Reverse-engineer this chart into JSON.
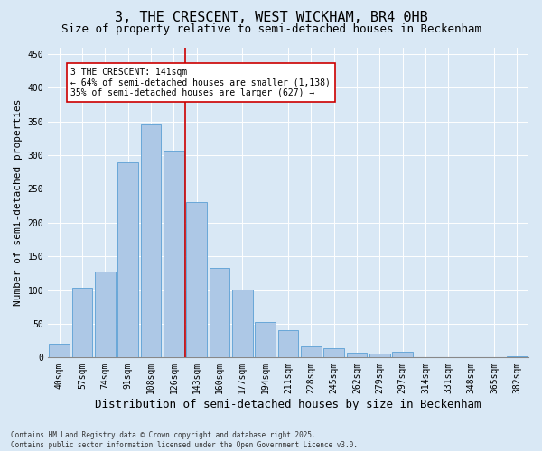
{
  "title": "3, THE CRESCENT, WEST WICKHAM, BR4 0HB",
  "subtitle": "Size of property relative to semi-detached houses in Beckenham",
  "xlabel": "Distribution of semi-detached houses by size in Beckenham",
  "ylabel": "Number of semi-detached properties",
  "bar_labels": [
    "40sqm",
    "57sqm",
    "74sqm",
    "91sqm",
    "108sqm",
    "126sqm",
    "143sqm",
    "160sqm",
    "177sqm",
    "194sqm",
    "211sqm",
    "228sqm",
    "245sqm",
    "262sqm",
    "279sqm",
    "297sqm",
    "314sqm",
    "331sqm",
    "348sqm",
    "365sqm",
    "382sqm"
  ],
  "bar_values": [
    20,
    103,
    128,
    290,
    345,
    307,
    230,
    133,
    101,
    53,
    41,
    16,
    14,
    7,
    6,
    8,
    1,
    0,
    0,
    0,
    2
  ],
  "bar_color": "#adc8e6",
  "bar_edge_color": "#5a9fd4",
  "vline_color": "#cc0000",
  "vline_index": 6,
  "annotation_title": "3 THE CRESCENT: 141sqm",
  "annotation_line1": "← 64% of semi-detached houses are smaller (1,138)",
  "annotation_line2": "35% of semi-detached houses are larger (627) →",
  "annotation_box_color": "#ffffff",
  "annotation_box_edge": "#cc0000",
  "ylim": [
    0,
    460
  ],
  "yticks": [
    0,
    50,
    100,
    150,
    200,
    250,
    300,
    350,
    400,
    450
  ],
  "background_color": "#d9e8f5",
  "plot_bg_color": "#d9e8f5",
  "footer": "Contains HM Land Registry data © Crown copyright and database right 2025.\nContains public sector information licensed under the Open Government Licence v3.0.",
  "title_fontsize": 11,
  "subtitle_fontsize": 9,
  "tick_fontsize": 7,
  "ylabel_fontsize": 8,
  "xlabel_fontsize": 9,
  "annotation_fontsize": 7,
  "footer_fontsize": 5.5
}
